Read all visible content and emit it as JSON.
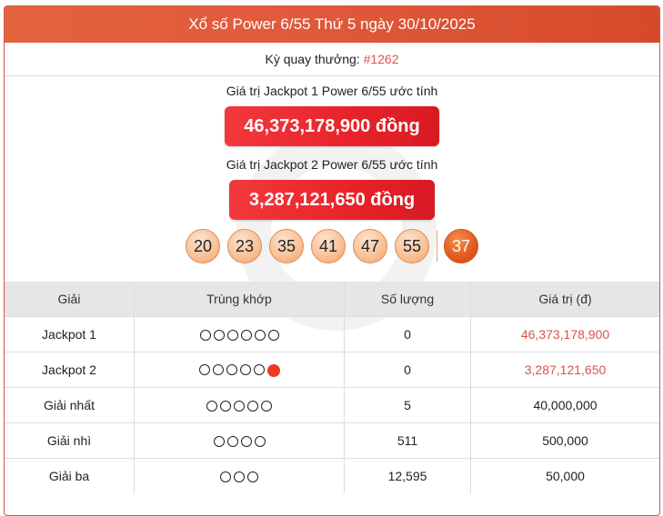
{
  "header": {
    "title": "Xổ số Power 6/55 Thứ 5 ngày 30/10/2025"
  },
  "draw": {
    "label": "Kỳ quay thưởng: ",
    "id": "#1262"
  },
  "jackpots": [
    {
      "label": "Giá trị Jackpot 1 Power 6/55 ước tính",
      "value": "46,373,178,900 đồng"
    },
    {
      "label": "Giá trị Jackpot 2 Power 6/55 ước tính",
      "value": "3,287,121,650 đồng"
    }
  ],
  "balls": [
    "20",
    "23",
    "35",
    "41",
    "47",
    "55"
  ],
  "power_ball": "37",
  "colors": {
    "accent": "#d9534f",
    "header": "#e0583a",
    "power_ball": "#e2591f"
  },
  "table": {
    "headers": [
      "Giải",
      "Trùng khớp",
      "Số lượng",
      "Giá trị (đ)"
    ],
    "rows": [
      {
        "prize": "Jackpot 1",
        "match": 6,
        "power": false,
        "count": "0",
        "value": "46,373,178,900",
        "highlight": true
      },
      {
        "prize": "Jackpot 2",
        "match": 5,
        "power": true,
        "count": "0",
        "value": "3,287,121,650",
        "highlight": true
      },
      {
        "prize": "Giải nhất",
        "match": 5,
        "power": false,
        "count": "5",
        "value": "40,000,000",
        "highlight": false
      },
      {
        "prize": "Giải nhì",
        "match": 4,
        "power": false,
        "count": "511",
        "value": "500,000",
        "highlight": false
      },
      {
        "prize": "Giải ba",
        "match": 3,
        "power": false,
        "count": "12,595",
        "value": "50,000",
        "highlight": false
      }
    ]
  }
}
